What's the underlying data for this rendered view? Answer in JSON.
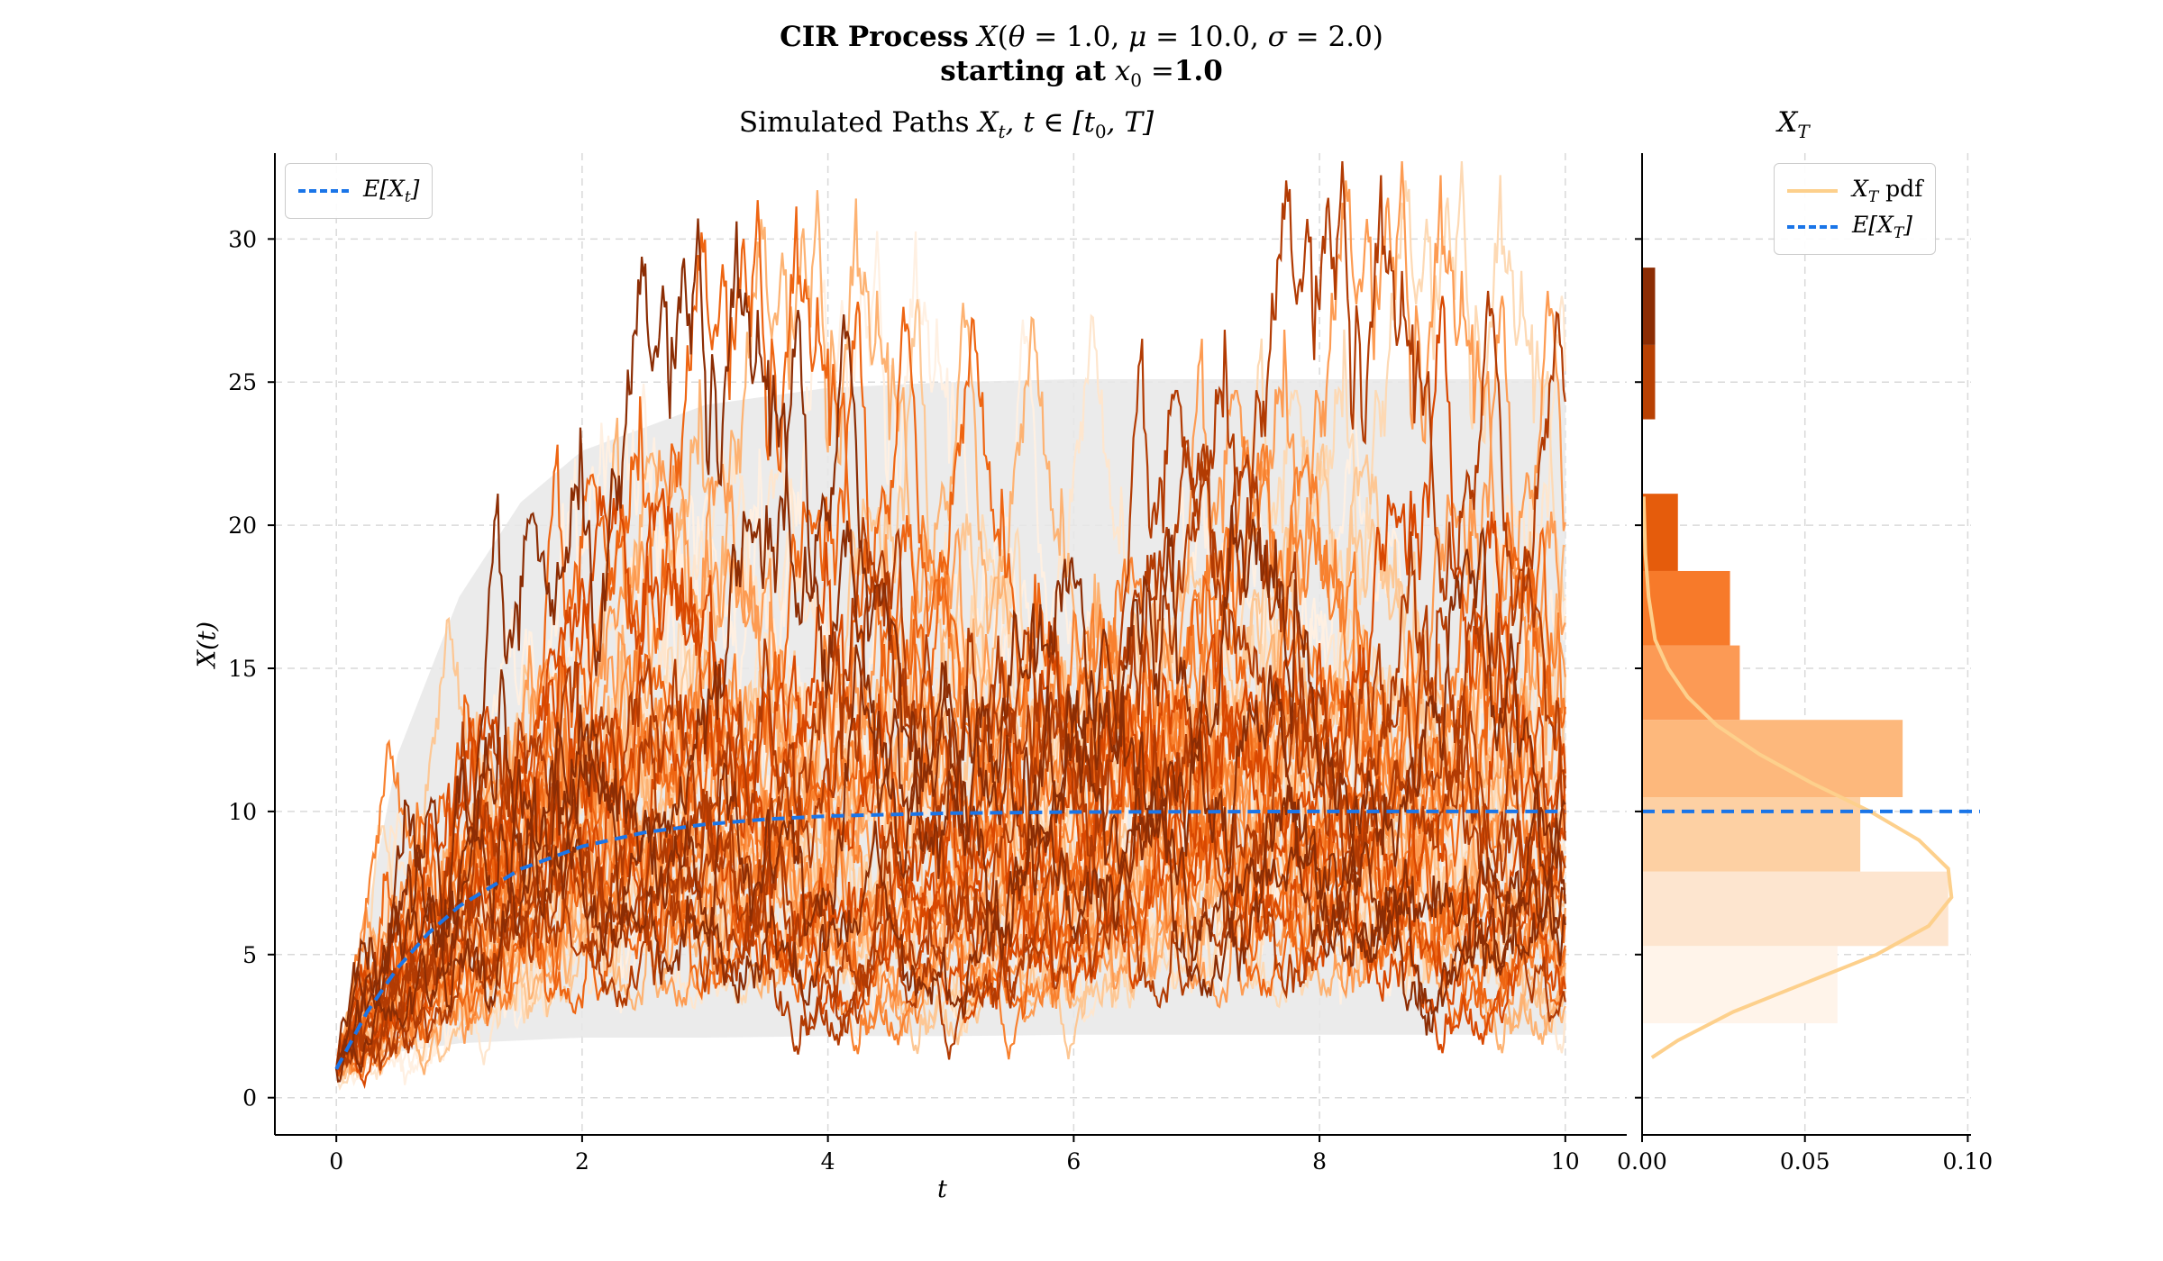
{
  "suptitle": {
    "line1": "CIR Process X(θ = 1.0, μ = 10.0, σ = 2.0)",
    "line2": "starting at x₀ = 1.0"
  },
  "chart_data": [
    {
      "type": "line",
      "title": "Simulated Paths X_t, t ∈ [t₀, T]",
      "xlabel": "t",
      "ylabel": "X(t)",
      "xlim": [
        -0.5,
        10.5
      ],
      "ylim": [
        -1.3,
        33.0
      ],
      "xticks": [
        0,
        2,
        4,
        6,
        8,
        10
      ],
      "yticks": [
        0,
        5,
        10,
        15,
        20,
        25,
        30
      ],
      "grid": true,
      "legend_position": "top-left",
      "parameters": {
        "theta": 1.0,
        "mu": 10.0,
        "sigma": 2.0,
        "x0": 1.0,
        "t0": 0,
        "T": 10
      },
      "n_paths": 50,
      "path_colormap": "Oranges",
      "confidence_band": {
        "description": "shaded envelope of simulated paths",
        "x": [
          0,
          0.5,
          1,
          1.5,
          2,
          3,
          4,
          5,
          6,
          8,
          10
        ],
        "lower": [
          1.0,
          1.6,
          1.9,
          2.0,
          2.1,
          2.1,
          2.15,
          2.15,
          2.2,
          2.2,
          2.2
        ],
        "upper": [
          1.0,
          12.0,
          17.5,
          20.8,
          22.6,
          24.2,
          24.8,
          25.0,
          25.1,
          25.1,
          25.1
        ],
        "color": "#e8e8e8"
      },
      "series": [
        {
          "name": "E[X_t]",
          "style": "dashed",
          "color": "#1a75e8",
          "x": [
            0,
            0.25,
            0.5,
            0.75,
            1,
            1.5,
            2,
            2.5,
            3,
            3.5,
            4,
            5,
            6,
            7,
            8,
            9,
            10
          ],
          "y": [
            1.0,
            2.99,
            4.54,
            5.75,
            6.69,
            7.99,
            8.78,
            9.26,
            9.55,
            9.73,
            9.84,
            9.94,
            9.98,
            9.99,
            10.0,
            10.0,
            10.0
          ]
        }
      ]
    },
    {
      "type": "bar",
      "orientation": "horizontal",
      "title": "X_T",
      "xlim": [
        0,
        0.101
      ],
      "xticks": [
        "0.00",
        "0.05",
        "0.10"
      ],
      "grid": true,
      "legend_position": "top-right",
      "bins": [
        {
          "y0": 2.6,
          "y1": 5.3,
          "density": 0.06,
          "color": "#fff4ea"
        },
        {
          "y0": 5.3,
          "y1": 7.9,
          "density": 0.094,
          "color": "#fde5cf"
        },
        {
          "y0": 7.9,
          "y1": 10.5,
          "density": 0.067,
          "color": "#fdd0a3"
        },
        {
          "y0": 10.5,
          "y1": 13.2,
          "density": 0.08,
          "color": "#fdb87c"
        },
        {
          "y0": 13.2,
          "y1": 15.8,
          "density": 0.03,
          "color": "#fc9a55"
        },
        {
          "y0": 15.8,
          "y1": 18.4,
          "density": 0.027,
          "color": "#f77a2a"
        },
        {
          "y0": 18.4,
          "y1": 21.1,
          "density": 0.011,
          "color": "#e55c0c"
        },
        {
          "y0": 23.7,
          "y1": 26.3,
          "density": 0.004,
          "color": "#b84103"
        },
        {
          "y0": 26.3,
          "y1": 29.0,
          "density": 0.004,
          "color": "#8c2d04"
        }
      ],
      "series": [
        {
          "name": "X_T pdf",
          "color": "#fdd08c",
          "style": "solid",
          "x": [
            0.003,
            0.011,
            0.028,
            0.05,
            0.072,
            0.088,
            0.095,
            0.094,
            0.085,
            0.07,
            0.052,
            0.036,
            0.023,
            0.014,
            0.008,
            0.004,
            0.002,
            0.001,
            0.0005
          ],
          "y": [
            1.4,
            2.0,
            3.0,
            4.0,
            5.0,
            6.0,
            7.0,
            8.0,
            9.0,
            10.0,
            11.0,
            12.0,
            13.0,
            14.0,
            15.0,
            16.0,
            17.5,
            19.0,
            21.0
          ]
        },
        {
          "name": "E[X_T]",
          "color": "#1a75e8",
          "style": "dashed",
          "y_const": 10.0
        }
      ]
    }
  ],
  "labels": {
    "main_title_prefix": "Simulated Paths ",
    "main_title_math": "X",
    "main_title_math_sub": "t",
    "main_title_math_rest": ", t ∈ [t",
    "main_title_math_sub2": "0",
    "main_title_math_end": ", T]",
    "hist_title": "X",
    "hist_title_sub": "T",
    "ylabel": "X(t)",
    "xlabel": "t",
    "legend_main": "E[X",
    "legend_main_sub": "t",
    "legend_main_end": "]",
    "legend_hist_pdf": "X",
    "legend_hist_pdf_sub": "T",
    "legend_hist_pdf_end": " pdf",
    "legend_hist_mean": "E[X",
    "legend_hist_mean_sub": "T",
    "legend_hist_mean_end": "]"
  }
}
